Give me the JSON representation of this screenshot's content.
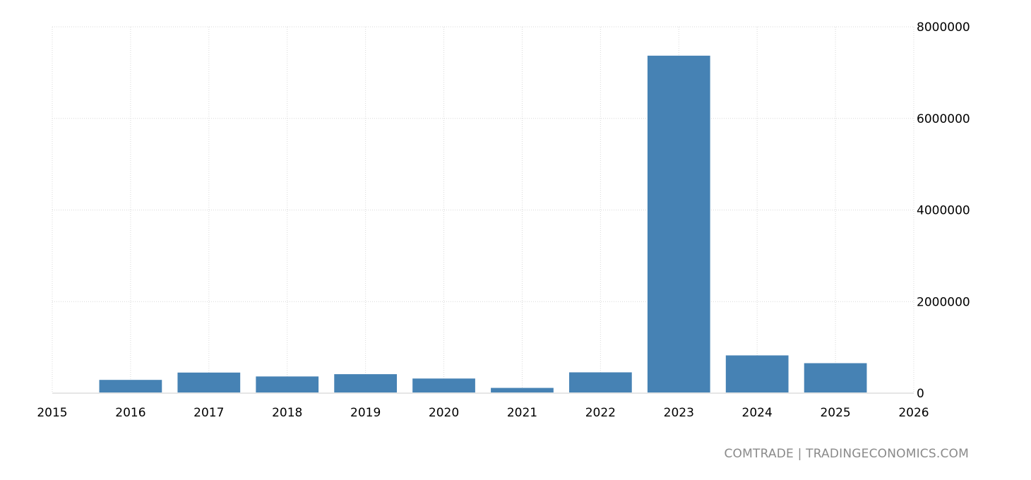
{
  "chart_data": {
    "type": "bar",
    "categories": [
      "2016",
      "2017",
      "2018",
      "2019",
      "2020",
      "2021",
      "2022",
      "2023",
      "2024",
      "2025"
    ],
    "values": [
      290000,
      450000,
      365000,
      415000,
      320000,
      115000,
      455000,
      7370000,
      825000,
      655000
    ],
    "x_ticks": [
      "2015",
      "2016",
      "2017",
      "2018",
      "2019",
      "2020",
      "2021",
      "2022",
      "2023",
      "2024",
      "2025",
      "2026"
    ],
    "y_ticks": [
      "0",
      "2000000",
      "4000000",
      "6000000",
      "8000000"
    ],
    "ylim": [
      0,
      8000000
    ],
    "xlim": [
      2015,
      2026
    ],
    "y_axis_side": "right",
    "grid": true,
    "bar_color": "#4682b4",
    "grid_color": "#d9d9d9"
  },
  "source": {
    "text": "COMTRADE | TRADINGECONOMICS.COM"
  }
}
